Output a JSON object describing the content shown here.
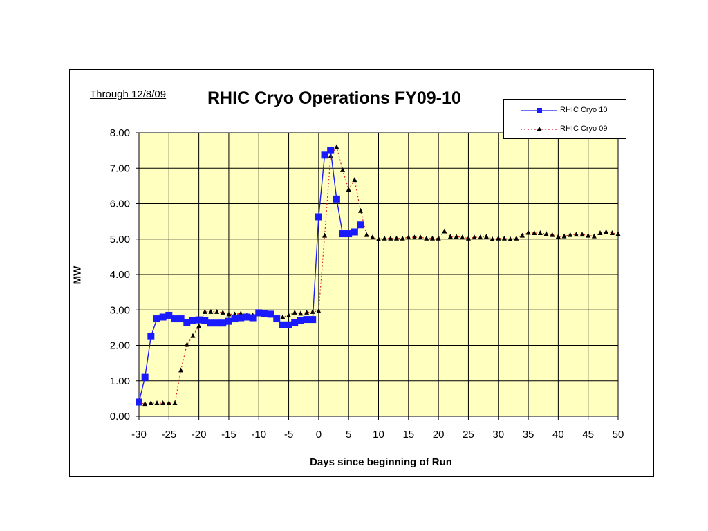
{
  "note": "Through 12/8/09",
  "colors": {
    "plot_bg": "#ffffc0",
    "cryo10": "#1a1aff",
    "cryo09_line": "#e02020",
    "cryo09_marker": "#000000",
    "grid": "#000000"
  },
  "chart_data": {
    "type": "line",
    "title": "RHIC Cryo Operations FY09-10",
    "xlabel": "Days since beginning of Run",
    "ylabel": "MW",
    "xlim": [
      -30,
      50
    ],
    "ylim": [
      0,
      8
    ],
    "xticks": [
      -30,
      -25,
      -20,
      -15,
      -10,
      -5,
      0,
      5,
      10,
      15,
      20,
      25,
      30,
      35,
      40,
      45,
      50
    ],
    "yticks": [
      "0.00",
      "1.00",
      "2.00",
      "3.00",
      "4.00",
      "5.00",
      "6.00",
      "7.00",
      "8.00"
    ],
    "grid": true,
    "legend_position": "top-right",
    "series": [
      {
        "name": "RHIC Cryo 10",
        "style": "solid line, square markers",
        "x": [
          -30,
          -29,
          -28,
          -27,
          -26,
          -25,
          -24,
          -23,
          -22,
          -21,
          -20,
          -19,
          -18,
          -17,
          -16,
          -15,
          -14,
          -13,
          -12,
          -11,
          -10,
          -9,
          -8,
          -7,
          -6,
          -5,
          -4,
          -3,
          -2,
          -1,
          0,
          1,
          2,
          3,
          4,
          5,
          6,
          7
        ],
        "y": [
          0.4,
          1.1,
          2.25,
          2.75,
          2.8,
          2.85,
          2.75,
          2.75,
          2.65,
          2.7,
          2.72,
          2.7,
          2.63,
          2.63,
          2.63,
          2.68,
          2.75,
          2.78,
          2.8,
          2.78,
          2.92,
          2.9,
          2.88,
          2.75,
          2.58,
          2.58,
          2.65,
          2.7,
          2.73,
          2.73,
          5.63,
          7.37,
          7.5,
          6.13,
          5.15,
          5.15,
          5.2,
          5.4
        ]
      },
      {
        "name": "RHIC Cryo 09",
        "style": "dotted line, triangle markers",
        "x": [
          -30,
          -29,
          -28,
          -27,
          -26,
          -25,
          -24,
          -23,
          -22,
          -21,
          -20,
          -19,
          -18,
          -17,
          -16,
          -15,
          -14,
          -13,
          -12,
          -11,
          -10,
          -9,
          -8,
          -7,
          -6,
          -5,
          -4,
          -3,
          -2,
          -1,
          0,
          1,
          2,
          3,
          4,
          5,
          6,
          7,
          8,
          9,
          10,
          11,
          12,
          13,
          14,
          15,
          16,
          17,
          18,
          19,
          20,
          21,
          22,
          23,
          24,
          25,
          26,
          27,
          28,
          29,
          30,
          31,
          32,
          33,
          34,
          35,
          36,
          37,
          38,
          39,
          40,
          41,
          42,
          43,
          44,
          45,
          46,
          47,
          48,
          49,
          50
        ],
        "y": [
          0.37,
          0.35,
          0.37,
          0.37,
          0.37,
          0.37,
          0.37,
          1.3,
          2.02,
          2.27,
          2.55,
          2.95,
          2.95,
          2.95,
          2.93,
          2.88,
          2.88,
          2.9,
          2.85,
          2.85,
          2.88,
          2.88,
          2.85,
          2.8,
          2.8,
          2.85,
          2.93,
          2.9,
          2.93,
          2.95,
          2.97,
          5.1,
          7.35,
          7.6,
          6.95,
          6.4,
          6.67,
          5.8,
          5.12,
          5.05,
          5.0,
          5.02,
          5.02,
          5.02,
          5.02,
          5.05,
          5.05,
          5.05,
          5.02,
          5.02,
          5.02,
          5.22,
          5.07,
          5.07,
          5.05,
          5.02,
          5.05,
          5.05,
          5.07,
          5.0,
          5.02,
          5.02,
          5.0,
          5.02,
          5.1,
          5.18,
          5.17,
          5.17,
          5.15,
          5.12,
          5.07,
          5.08,
          5.12,
          5.13,
          5.13,
          5.1,
          5.08,
          5.17,
          5.2,
          5.17,
          5.15
        ]
      }
    ]
  }
}
